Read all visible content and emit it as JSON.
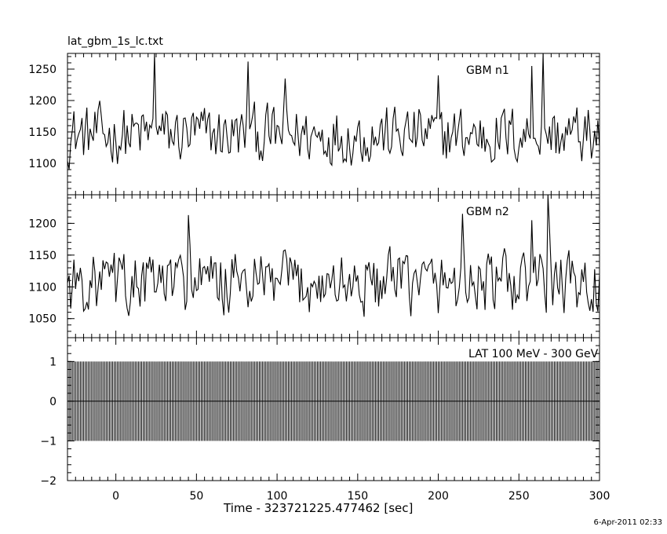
{
  "title": "lat_gbm_1s_lc.txt",
  "xlabel": "Time - 323721225.477462 [sec]",
  "timestamp": "6-Apr-2011 02:33",
  "chart_data": [
    {
      "type": "line",
      "name": "GBM n1",
      "label": "GBM n1",
      "xlim": [
        -30,
        300
      ],
      "ylim": [
        1050,
        1275
      ],
      "yticks": [
        1100,
        1150,
        1200,
        1250
      ],
      "bin_seconds": 1,
      "mean": 1145,
      "spread": 32,
      "peaks": [
        {
          "x": 24,
          "y": 1275
        },
        {
          "x": 82,
          "y": 1262
        },
        {
          "x": 258,
          "y": 1255
        },
        {
          "x": 265,
          "y": 1275
        },
        {
          "x": 105,
          "y": 1235
        },
        {
          "x": 200,
          "y": 1240
        }
      ]
    },
    {
      "type": "line",
      "name": "GBM n2",
      "label": "GBM n2",
      "xlim": [
        -30,
        300
      ],
      "ylim": [
        1020,
        1245
      ],
      "yticks": [
        1050,
        1100,
        1150,
        1200
      ],
      "bin_seconds": 1,
      "mean": 1105,
      "spread": 34,
      "peaks": [
        {
          "x": 268,
          "y": 1245
        },
        {
          "x": 215,
          "y": 1215
        },
        {
          "x": 45,
          "y": 1213
        },
        {
          "x": 258,
          "y": 1205
        }
      ]
    },
    {
      "type": "line",
      "name": "LAT 100 MeV - 300 GeV",
      "label": "LAT 100 MeV - 300 GeV",
      "xlim": [
        -30,
        300
      ],
      "ylim": [
        -2,
        1.6
      ],
      "yticks": [
        -2,
        -1,
        0,
        1
      ],
      "xticks": [
        0,
        50,
        100,
        150,
        200,
        250,
        300
      ],
      "bin_seconds": 1,
      "values": "all bins 0 with ±1 error bars",
      "value": 0,
      "error": 1
    }
  ]
}
